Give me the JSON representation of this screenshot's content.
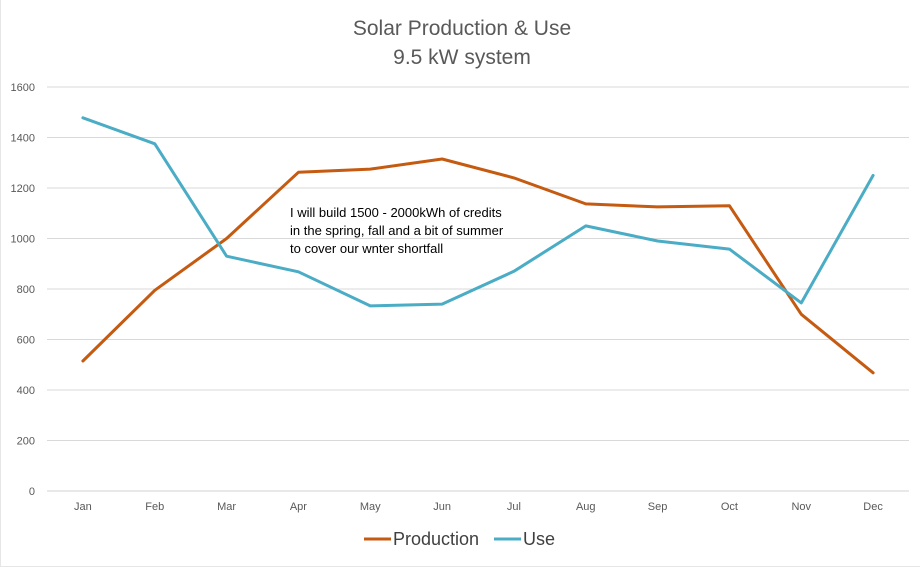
{
  "chart_data": {
    "type": "line",
    "title": "Solar Production & Use",
    "subtitle": "9.5 kW system",
    "xlabel": "",
    "ylabel": "",
    "categories": [
      "Jan",
      "Feb",
      "Mar",
      "Apr",
      "May",
      "Jun",
      "Jul",
      "Aug",
      "Sep",
      "Oct",
      "Nov",
      "Dec"
    ],
    "series": [
      {
        "name": "Production",
        "color": "#c55a11",
        "values": [
          515,
          795,
          1000,
          1262,
          1275,
          1315,
          1240,
          1137,
          1125,
          1130,
          700,
          468
        ]
      },
      {
        "name": "Use",
        "color": "#4bacc6",
        "values": [
          1478,
          1375,
          930,
          868,
          733,
          740,
          870,
          1050,
          990,
          958,
          745,
          1250
        ]
      }
    ],
    "ylim": [
      0,
      1600
    ],
    "yticks": [
      0,
      200,
      400,
      600,
      800,
      1000,
      1200,
      1400,
      1600
    ],
    "grid": true,
    "legend_position": "bottom",
    "annotation": [
      "I will build 1500 - 2000kWh of credits",
      "in the spring, fall and a bit of summer",
      "to cover our wnter shortfall"
    ]
  }
}
